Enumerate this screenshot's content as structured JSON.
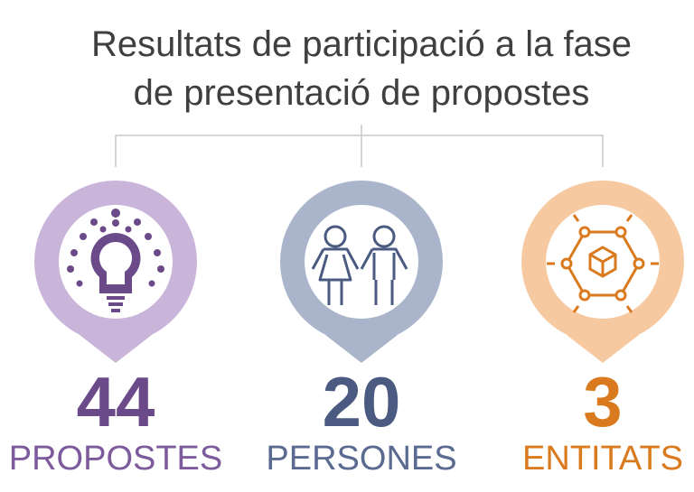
{
  "title_lines": [
    "Resultats de participació a la fase",
    "de presentació de propostes"
  ],
  "items": [
    {
      "value": 44,
      "label": "PROPOSTES"
    },
    {
      "value": 20,
      "label": "PERSONES"
    },
    {
      "value": 3,
      "label": "ENTITATS"
    }
  ]
}
